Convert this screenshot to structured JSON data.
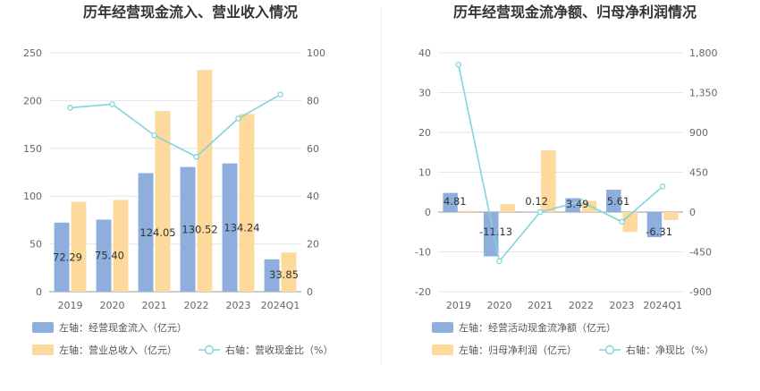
{
  "chart_data": [
    {
      "type": "bar",
      "title": "历年经营现金流入、营业收入情况",
      "categories": [
        "2019",
        "2020",
        "2021",
        "2022",
        "2023",
        "2024Q1"
      ],
      "left_axis": {
        "ylim": [
          0,
          250
        ],
        "ticks": [
          "0",
          "50",
          "100",
          "150",
          "200",
          "250"
        ]
      },
      "right_axis": {
        "ylim": [
          0,
          100
        ],
        "ticks": [
          "0",
          "20",
          "40",
          "60",
          "80",
          "100"
        ]
      },
      "series": [
        {
          "name": "左轴：经营现金流入（亿元）",
          "axis": "left",
          "kind": "bar",
          "color": "#8eaedd",
          "values": [
            72.29,
            75.4,
            124.05,
            130.52,
            134.24,
            33.85
          ],
          "labels": [
            "72.29",
            "75.40",
            "124.05",
            "130.52",
            "134.24",
            "33.85"
          ]
        },
        {
          "name": "左轴：营业总收入（亿元）",
          "axis": "left",
          "kind": "bar",
          "color": "#fdd99b",
          "values": [
            94,
            96,
            189,
            232,
            186,
            41
          ]
        },
        {
          "name": "右轴：营收现金比（%）",
          "axis": "right",
          "kind": "line",
          "color": "#82d4da",
          "values": [
            77,
            78.5,
            65.5,
            56.5,
            72.5,
            82.5
          ]
        }
      ],
      "grid": true,
      "legend_position": "bottom"
    },
    {
      "type": "bar",
      "title": "历年经营现金流净额、归母净利润情况",
      "categories": [
        "2019",
        "2020",
        "2021",
        "2022",
        "2023",
        "2024Q1"
      ],
      "left_axis": {
        "ylim": [
          -20,
          40
        ],
        "ticks": [
          "-20",
          "-10",
          "0",
          "10",
          "20",
          "30",
          "40"
        ]
      },
      "right_axis": {
        "ylim": [
          -900,
          1800
        ],
        "ticks": [
          "-900",
          "-450",
          "0",
          "450",
          "900",
          "1,350",
          "1,800"
        ]
      },
      "series": [
        {
          "name": "左轴：经营活动现金流净额（亿元）",
          "axis": "left",
          "kind": "bar",
          "color": "#8eaedd",
          "values": [
            4.81,
            -11.13,
            0.12,
            3.49,
            5.61,
            -6.31
          ],
          "labels": [
            "4.81",
            "-11.13",
            "0.12",
            "3.49",
            "5.61",
            "-6.31"
          ]
        },
        {
          "name": "左轴：归母净利润（亿元）",
          "axis": "left",
          "kind": "bar",
          "color": "#fdd99b",
          "values": [
            0.3,
            2.0,
            15.5,
            2.8,
            -5.0,
            -2.0
          ]
        },
        {
          "name": "右轴：净现比（%）",
          "axis": "right",
          "kind": "line",
          "color": "#82d4da",
          "values": [
            1665,
            -555,
            0,
            120,
            -110,
            290
          ]
        }
      ],
      "grid": true,
      "legend_position": "bottom"
    }
  ]
}
